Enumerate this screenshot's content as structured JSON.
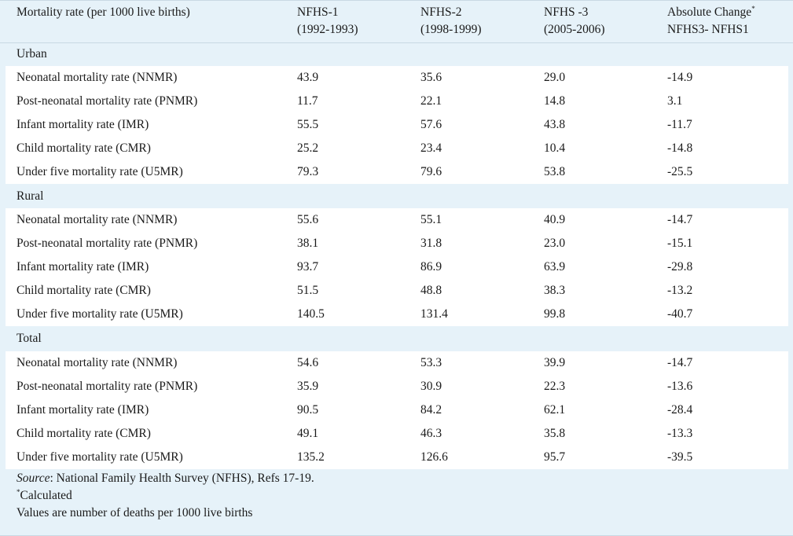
{
  "header": {
    "col0": "Mortality rate (per 1000 live births)",
    "col1_line1": "NFHS-1",
    "col1_line2": "(1992-1993)",
    "col2_line1": "NFHS-2",
    "col2_line2": "(1998-1999)",
    "col3_line1": "NFHS -3",
    "col3_line2": "(2005-2006)",
    "col4_line1": "Absolute Change",
    "col4_mark": "*",
    "col4_line2": "NFHS3- NFHS1"
  },
  "groups": [
    {
      "title": "Urban",
      "rows": [
        {
          "label": "Neonatal mortality rate (NNMR)",
          "nfhs1": "43.9",
          "nfhs2": "35.6",
          "nfhs3": "29.0",
          "change": "-14.9"
        },
        {
          "label": "Post-neonatal mortality rate (PNMR)",
          "nfhs1": "11.7",
          "nfhs2": "22.1",
          "nfhs3": "14.8",
          "change": "3.1"
        },
        {
          "label": "Infant mortality rate (IMR)",
          "nfhs1": "55.5",
          "nfhs2": "57.6",
          "nfhs3": "43.8",
          "change": "-11.7"
        },
        {
          "label": "Child mortality rate (CMR)",
          "nfhs1": "25.2",
          "nfhs2": "23.4",
          "nfhs3": "10.4",
          "change": "-14.8"
        },
        {
          "label": "Under five mortality rate (U5MR)",
          "nfhs1": "79.3",
          "nfhs2": "79.6",
          "nfhs3": "53.8",
          "change": "-25.5"
        }
      ]
    },
    {
      "title": "Rural",
      "rows": [
        {
          "label": "Neonatal mortality rate (NNMR)",
          "nfhs1": "55.6",
          "nfhs2": "55.1",
          "nfhs3": "40.9",
          "change": "-14.7"
        },
        {
          "label": "Post-neonatal mortality rate (PNMR)",
          "nfhs1": "38.1",
          "nfhs2": "31.8",
          "nfhs3": "23.0",
          "change": "-15.1"
        },
        {
          "label": "Infant mortality rate (IMR)",
          "nfhs1": "93.7",
          "nfhs2": "86.9",
          "nfhs3": "63.9",
          "change": "-29.8"
        },
        {
          "label": "Child mortality rate (CMR)",
          "nfhs1": "51.5",
          "nfhs2": "48.8",
          "nfhs3": "38.3",
          "change": "-13.2"
        },
        {
          "label": "Under five mortality rate (U5MR)",
          "nfhs1": "140.5",
          "nfhs2": "131.4",
          "nfhs3": "99.8",
          "change": "-40.7"
        }
      ]
    },
    {
      "title": "Total",
      "rows": [
        {
          "label": "Neonatal mortality rate (NNMR)",
          "nfhs1": "54.6",
          "nfhs2": "53.3",
          "nfhs3": "39.9",
          "change": "-14.7"
        },
        {
          "label": "Post-neonatal mortality rate (PNMR)",
          "nfhs1": "35.9",
          "nfhs2": "30.9",
          "nfhs3": "22.3",
          "change": "-13.6"
        },
        {
          "label": "Infant mortality rate (IMR)",
          "nfhs1": "90.5",
          "nfhs2": "84.2",
          "nfhs3": "62.1",
          "change": "-28.4"
        },
        {
          "label": "Child mortality rate (CMR)",
          "nfhs1": "49.1",
          "nfhs2": "46.3",
          "nfhs3": "35.8",
          "change": "-13.3"
        },
        {
          "label": "Under five mortality rate (U5MR)",
          "nfhs1": "135.2",
          "nfhs2": "126.6",
          "nfhs3": "95.7",
          "change": "-39.5"
        }
      ]
    }
  ],
  "footer": {
    "source_label": "Source",
    "source_text": ": National Family Health Survey (NFHS), Refs 17-19.",
    "calc_mark": "*",
    "calc_text": "Calculated",
    "units_text": "Values are number of deaths per 1000 live births"
  },
  "colors": {
    "header_bg": "#e6f2f9",
    "row_white": "#ffffff",
    "row_blue": "#e6f2f9"
  }
}
